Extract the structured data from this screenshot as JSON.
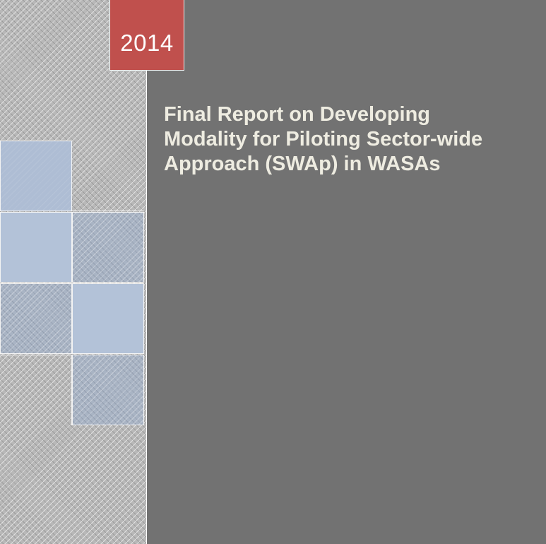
{
  "cover": {
    "year": "2014",
    "title_lines": [
      "Final Report on Developing",
      "Modality for Piloting Sector-wide",
      "Approach (SWAp) in WASAs"
    ]
  },
  "colors": {
    "main_panel": "#727272",
    "year_box": "#c0504d",
    "title_text": "#eeece1",
    "tile_blue": "#aebdd4",
    "pattern_gray": "#b8b8b8"
  }
}
